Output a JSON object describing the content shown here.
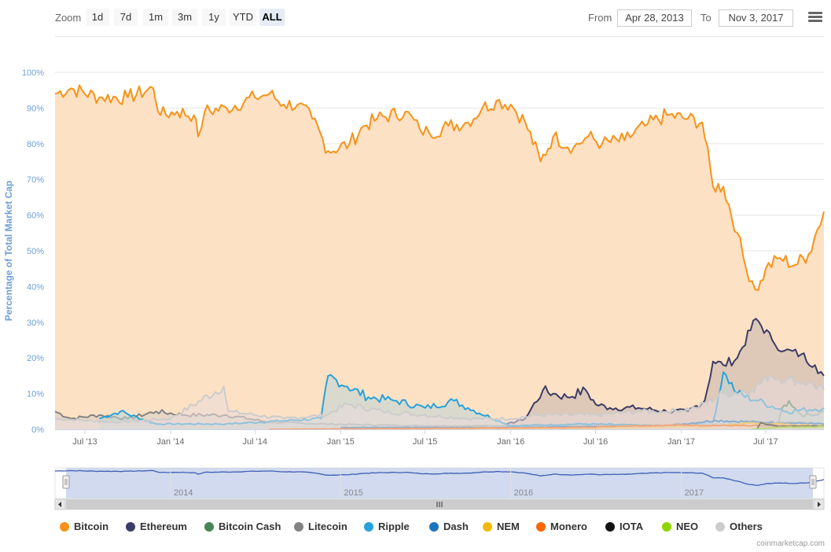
{
  "toolbar": {
    "zoom_label": "Zoom",
    "zoom_buttons": [
      "1d",
      "7d",
      "1m",
      "3m",
      "1y",
      "YTD",
      "ALL"
    ],
    "active_zoom": "ALL",
    "from_label": "From",
    "from_value": "Apr 28, 2013",
    "to_label": "To",
    "to_value": "Nov 3, 2017"
  },
  "credits": "coinmarketcap.com",
  "chart_data": {
    "type": "area",
    "ylabel": "Percentage of Total Market Cap",
    "ylim": [
      0,
      100
    ],
    "y_ticks": [
      "0%",
      "10%",
      "20%",
      "30%",
      "40%",
      "50%",
      "60%",
      "70%",
      "80%",
      "90%",
      "100%"
    ],
    "x_ticks": [
      {
        "label": "Jul '13",
        "date": "2013-07-01"
      },
      {
        "label": "Jan '14",
        "date": "2014-01-01"
      },
      {
        "label": "Jul '14",
        "date": "2014-07-01"
      },
      {
        "label": "Jan '15",
        "date": "2015-01-01"
      },
      {
        "label": "Jul '15",
        "date": "2015-07-01"
      },
      {
        "label": "Jan '16",
        "date": "2016-01-01"
      },
      {
        "label": "Jul '16",
        "date": "2016-07-01"
      },
      {
        "label": "Jan '17",
        "date": "2017-01-01"
      },
      {
        "label": "Jul '17",
        "date": "2017-07-01"
      }
    ],
    "x_range": [
      "2013-04-28",
      "2017-11-03"
    ],
    "navigator_ticks": [
      {
        "label": "2014",
        "date": "2014-01-01"
      },
      {
        "label": "2015",
        "date": "2015-01-01"
      },
      {
        "label": "2016",
        "date": "2016-01-01"
      },
      {
        "label": "2017",
        "date": "2017-01-01"
      }
    ],
    "grid": true,
    "legend_position": "bottom",
    "series": [
      {
        "name": "Bitcoin",
        "color": "#f7931a",
        "fill": "#fce1c4",
        "points": [
          [
            "2013-04-28",
            94
          ],
          [
            "2013-06-01",
            95.5
          ],
          [
            "2013-08-01",
            93
          ],
          [
            "2013-10-01",
            93
          ],
          [
            "2013-11-25",
            95.5
          ],
          [
            "2013-12-10",
            88
          ],
          [
            "2014-01-15",
            89
          ],
          [
            "2014-02-20",
            88
          ],
          [
            "2014-03-01",
            82
          ],
          [
            "2014-03-15",
            89
          ],
          [
            "2014-05-01",
            90
          ],
          [
            "2014-07-01",
            93
          ],
          [
            "2014-08-01",
            94
          ],
          [
            "2014-09-01",
            91
          ],
          [
            "2014-10-01",
            91
          ],
          [
            "2014-11-01",
            87
          ],
          [
            "2014-12-05",
            78
          ],
          [
            "2015-01-20",
            80
          ],
          [
            "2015-02-20",
            85
          ],
          [
            "2015-03-20",
            87
          ],
          [
            "2015-05-20",
            89
          ],
          [
            "2015-06-20",
            84
          ],
          [
            "2015-07-10",
            83
          ],
          [
            "2015-08-20",
            85
          ],
          [
            "2015-10-01",
            86
          ],
          [
            "2015-11-01",
            90
          ],
          [
            "2015-12-01",
            92
          ],
          [
            "2016-01-01",
            91
          ],
          [
            "2016-02-01",
            86
          ],
          [
            "2016-03-05",
            75
          ],
          [
            "2016-04-01",
            82
          ],
          [
            "2016-05-15",
            79
          ],
          [
            "2016-06-15",
            82
          ],
          [
            "2016-07-15",
            80
          ],
          [
            "2016-09-01",
            81
          ],
          [
            "2016-10-15",
            85
          ],
          [
            "2016-12-01",
            88
          ],
          [
            "2017-01-15",
            87
          ],
          [
            "2017-02-15",
            86
          ],
          [
            "2017-03-10",
            68
          ],
          [
            "2017-04-01",
            68
          ],
          [
            "2017-05-01",
            55
          ],
          [
            "2017-05-20",
            45
          ],
          [
            "2017-06-15",
            39
          ],
          [
            "2017-07-01",
            45
          ],
          [
            "2017-08-01",
            48
          ],
          [
            "2017-09-01",
            46
          ],
          [
            "2017-10-01",
            49
          ],
          [
            "2017-10-20",
            56
          ],
          [
            "2017-11-03",
            61
          ]
        ]
      },
      {
        "name": "Ethereum",
        "color": "#3c3c66",
        "fill": "#c4b4af",
        "points": [
          [
            "2015-08-01",
            0
          ],
          [
            "2015-12-01",
            0.5
          ],
          [
            "2016-02-01",
            3
          ],
          [
            "2016-03-10",
            11
          ],
          [
            "2016-04-01",
            10
          ],
          [
            "2016-05-01",
            9
          ],
          [
            "2016-06-10",
            11
          ],
          [
            "2016-07-01",
            7
          ],
          [
            "2016-08-01",
            6
          ],
          [
            "2016-10-01",
            6
          ],
          [
            "2016-12-01",
            5
          ],
          [
            "2017-01-15",
            5
          ],
          [
            "2017-02-20",
            8
          ],
          [
            "2017-03-10",
            19
          ],
          [
            "2017-04-01",
            18
          ],
          [
            "2017-05-01",
            20
          ],
          [
            "2017-06-10",
            31
          ],
          [
            "2017-07-15",
            25
          ],
          [
            "2017-08-10",
            22
          ],
          [
            "2017-09-15",
            21
          ],
          [
            "2017-10-15",
            18
          ],
          [
            "2017-11-03",
            15
          ]
        ]
      },
      {
        "name": "Bitcoin Cash",
        "color": "#478559",
        "fill": "#c3d7c0",
        "points": [
          [
            "2017-07-25",
            0
          ],
          [
            "2017-08-05",
            6
          ],
          [
            "2017-08-20",
            8
          ],
          [
            "2017-09-15",
            4
          ],
          [
            "2017-10-15",
            4
          ],
          [
            "2017-11-03",
            5
          ]
        ]
      },
      {
        "name": "Litecoin",
        "color": "#838383",
        "fill": "#d6cfcb",
        "points": [
          [
            "2013-04-28",
            5
          ],
          [
            "2013-06-01",
            3
          ],
          [
            "2013-08-01",
            4
          ],
          [
            "2013-10-01",
            3
          ],
          [
            "2013-12-01",
            5
          ],
          [
            "2014-02-01",
            4
          ],
          [
            "2014-05-01",
            4
          ],
          [
            "2014-08-01",
            2
          ],
          [
            "2014-12-01",
            1.5
          ],
          [
            "2015-06-01",
            1
          ],
          [
            "2015-12-01",
            1
          ],
          [
            "2016-06-01",
            1
          ],
          [
            "2016-12-01",
            1
          ],
          [
            "2017-05-01",
            2
          ],
          [
            "2017-08-01",
            2
          ],
          [
            "2017-11-03",
            1.5
          ]
        ]
      },
      {
        "name": "Ripple",
        "color": "#27a2db",
        "fill": "#bcd5d5",
        "points": [
          [
            "2013-08-01",
            3
          ],
          [
            "2013-09-15",
            5
          ],
          [
            "2013-12-01",
            1.5
          ],
          [
            "2014-05-01",
            1.5
          ],
          [
            "2014-11-20",
            3
          ],
          [
            "2014-12-05",
            15
          ],
          [
            "2015-01-15",
            12
          ],
          [
            "2015-03-01",
            9
          ],
          [
            "2015-05-01",
            8
          ],
          [
            "2015-07-01",
            6
          ],
          [
            "2015-09-01",
            8
          ],
          [
            "2015-10-01",
            6
          ],
          [
            "2016-01-01",
            1
          ],
          [
            "2016-06-01",
            1.5
          ],
          [
            "2016-12-01",
            1
          ],
          [
            "2017-03-10",
            2
          ],
          [
            "2017-04-01",
            16
          ],
          [
            "2017-05-01",
            10
          ],
          [
            "2017-06-15",
            8
          ],
          [
            "2017-08-15",
            5
          ],
          [
            "2017-11-03",
            6
          ]
        ]
      },
      {
        "name": "Dash",
        "color": "#1c75bc",
        "fill": "#c9d8e6",
        "points": [
          [
            "2015-01-01",
            0.5
          ],
          [
            "2016-01-01",
            0.5
          ],
          [
            "2016-12-01",
            1
          ],
          [
            "2017-03-15",
            2.5
          ],
          [
            "2017-06-15",
            2
          ],
          [
            "2017-11-03",
            1.5
          ]
        ]
      },
      {
        "name": "NEM",
        "color": "#f0b90b",
        "fill": "#f7e1a8",
        "points": [
          [
            "2015-10-01",
            0
          ],
          [
            "2016-06-01",
            0.3
          ],
          [
            "2017-03-01",
            0.8
          ],
          [
            "2017-06-01",
            1.8
          ],
          [
            "2017-11-03",
            1
          ]
        ]
      },
      {
        "name": "Monero",
        "color": "#ff6600",
        "fill": "#fbcaa6",
        "points": [
          [
            "2014-08-01",
            0
          ],
          [
            "2016-06-01",
            0.5
          ],
          [
            "2016-09-01",
            1
          ],
          [
            "2017-01-15",
            1.2
          ],
          [
            "2017-06-01",
            1
          ],
          [
            "2017-11-03",
            0.8
          ]
        ]
      },
      {
        "name": "IOTA",
        "color": "#111111",
        "fill": "#bbbbbb",
        "points": [
          [
            "2017-06-12",
            0
          ],
          [
            "2017-06-20",
            1.8
          ],
          [
            "2017-08-01",
            0.8
          ],
          [
            "2017-11-03",
            1
          ]
        ]
      },
      {
        "name": "NEO",
        "color": "#8fd400",
        "fill": "#d7eeb0",
        "points": [
          [
            "2017-06-01",
            0
          ],
          [
            "2017-08-01",
            0.6
          ],
          [
            "2017-11-03",
            0.7
          ]
        ]
      },
      {
        "name": "Others",
        "color": "#cccccc",
        "fill": "#e9dddd",
        "points": [
          [
            "2013-04-28",
            3
          ],
          [
            "2013-09-01",
            2
          ],
          [
            "2014-01-01",
            3
          ],
          [
            "2014-04-25",
            12
          ],
          [
            "2014-05-05",
            5
          ],
          [
            "2014-09-01",
            3
          ],
          [
            "2014-12-01",
            4
          ],
          [
            "2015-01-15",
            7
          ],
          [
            "2015-04-01",
            5
          ],
          [
            "2015-07-01",
            4
          ],
          [
            "2015-10-01",
            3
          ],
          [
            "2016-01-01",
            3
          ],
          [
            "2016-03-01",
            4
          ],
          [
            "2016-07-01",
            4
          ],
          [
            "2016-10-01",
            5
          ],
          [
            "2016-12-01",
            5
          ],
          [
            "2017-02-01",
            6
          ],
          [
            "2017-04-01",
            10
          ],
          [
            "2017-06-01",
            11
          ],
          [
            "2017-07-10",
            15
          ],
          [
            "2017-08-15",
            14
          ],
          [
            "2017-10-01",
            13
          ],
          [
            "2017-11-03",
            11
          ]
        ]
      }
    ]
  }
}
